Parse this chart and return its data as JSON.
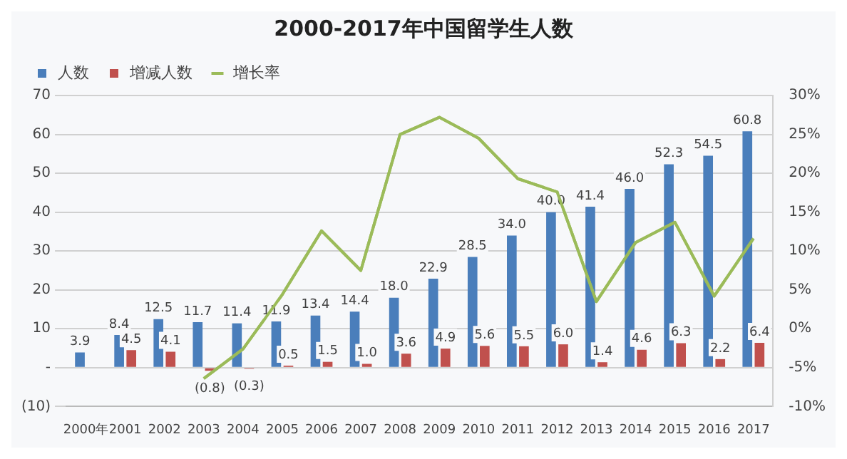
{
  "chart_data": {
    "type": "bar",
    "title": "2000-2017年中国留学生人数",
    "categories": [
      "2000年",
      "2001",
      "2002",
      "2003",
      "2004",
      "2005",
      "2006",
      "2007",
      "2008",
      "2009",
      "2010",
      "2011",
      "2012",
      "2013",
      "2014",
      "2015",
      "2016",
      "2017"
    ],
    "series": [
      {
        "name": "人数",
        "type": "bar",
        "color": "#4a7ebb",
        "values": [
          3.9,
          8.4,
          12.5,
          11.7,
          11.4,
          11.9,
          13.4,
          14.4,
          18.0,
          22.9,
          28.5,
          34.0,
          40.0,
          41.4,
          46.0,
          52.3,
          54.5,
          60.8
        ],
        "value_labels": [
          "3.9",
          "8.4",
          "12.5",
          "11.7",
          "11.4",
          "11.9",
          "13.4",
          "14.4",
          "18.0",
          "22.9",
          "28.5",
          "34.0",
          "40.0",
          "41.4",
          "46.0",
          "52.3",
          "54.5",
          "60.8"
        ]
      },
      {
        "name": "增减人数",
        "type": "bar",
        "color": "#c0504d",
        "values": [
          null,
          4.5,
          4.1,
          -0.8,
          -0.3,
          0.5,
          1.5,
          1.0,
          3.6,
          4.9,
          5.6,
          5.5,
          6.0,
          1.4,
          4.6,
          6.3,
          2.2,
          6.4
        ],
        "value_labels": [
          null,
          "4.5",
          "4.1",
          "(0.8)",
          "(0.3)",
          "0.5",
          "1.5",
          "1.0",
          "3.6",
          "4.9",
          "5.6",
          "5.5",
          "6.0",
          "1.4",
          "4.6",
          "6.3",
          "2.2",
          "6.4"
        ]
      },
      {
        "name": "增长率",
        "type": "line",
        "axis": "y2",
        "color": "#9bbb59",
        "values": [
          null,
          null,
          null,
          -6.4,
          -2.6,
          4.4,
          12.6,
          7.5,
          25.0,
          27.2,
          24.5,
          19.3,
          17.6,
          3.5,
          11.1,
          13.7,
          4.2,
          11.6
        ]
      }
    ],
    "ylim": [
      -10,
      70
    ],
    "yticks": [
      {
        "value": -10,
        "label": "(10)"
      },
      {
        "value": 0,
        "label": "-"
      },
      10,
      20,
      30,
      40,
      50,
      60,
      70
    ],
    "y2lim": [
      -10,
      30
    ],
    "y2ticks": [
      {
        "value": -10,
        "label": "-10%"
      },
      {
        "value": -5,
        "label": "-5%"
      },
      {
        "value": 0,
        "label": "0%"
      },
      {
        "value": 5,
        "label": "5%"
      },
      {
        "value": 10,
        "label": "10%"
      },
      {
        "value": 15,
        "label": "15%"
      },
      {
        "value": 20,
        "label": "20%"
      },
      {
        "value": 25,
        "label": "25%"
      },
      {
        "value": 30,
        "label": "30%"
      }
    ],
    "grid": "y",
    "legend": "top left",
    "marker": "none",
    "line_style": "solid"
  }
}
